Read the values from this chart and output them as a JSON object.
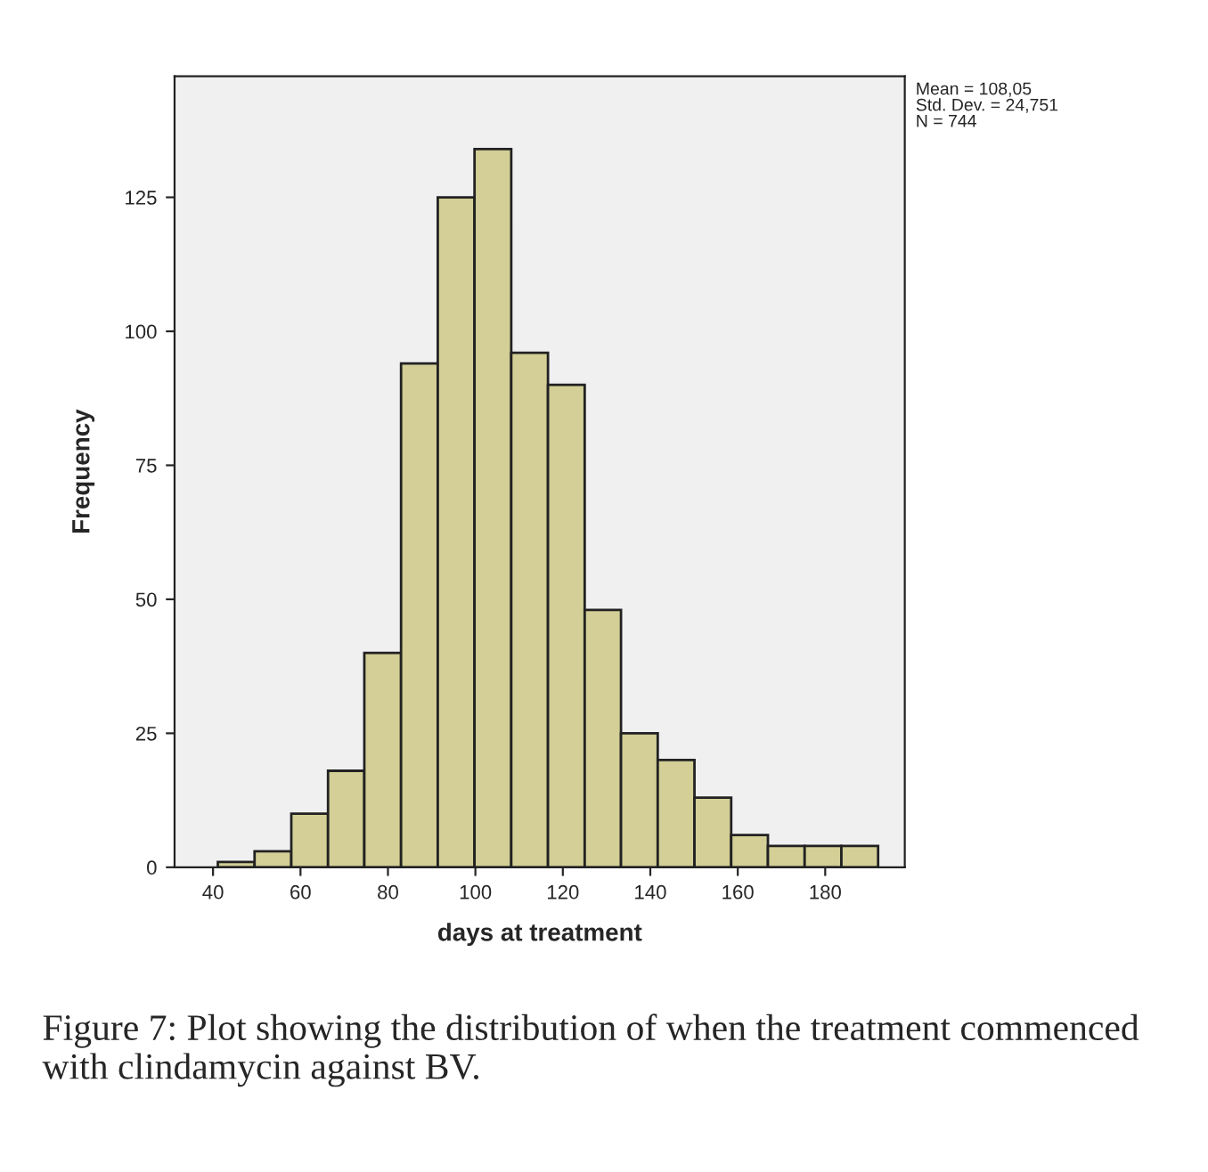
{
  "chart_data": {
    "type": "histogram",
    "xlabel": "days at treatment",
    "ylabel": "Frequency",
    "bins": [
      41.1,
      49.5,
      57.9,
      66.3,
      74.6,
      83.0,
      91.4,
      99.8,
      108.2,
      116.6,
      125.0,
      133.3,
      141.7,
      150.1,
      158.5,
      166.9,
      175.3,
      183.7,
      192.1
    ],
    "values": [
      1,
      3,
      10,
      18,
      40,
      94,
      125,
      134,
      96,
      90,
      48,
      25,
      20,
      13,
      6,
      4,
      4,
      4
    ],
    "color": "#d3cf96",
    "xlim": [
      31.2,
      198.2
    ],
    "ylim": [
      0,
      147.6
    ],
    "xticks": [
      40,
      60,
      80,
      100,
      120,
      140,
      160,
      180
    ],
    "yticks": [
      0,
      25,
      50,
      75,
      100,
      125
    ],
    "grid": false,
    "legend": false,
    "annotations": [
      "Mean = 108,05\nStd. Dev. = 24,751\nN = 744",
      "Figure 7: Plot showing the distribution of when the treatment commenced with clindamycin against BV."
    ]
  }
}
